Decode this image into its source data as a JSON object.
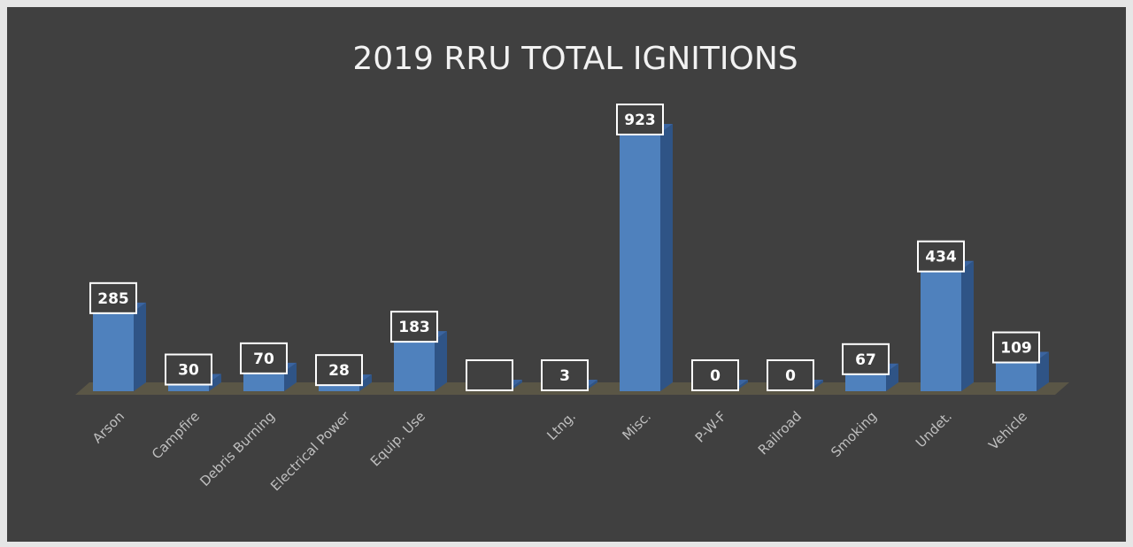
{
  "chart_data": {
    "type": "bar3d",
    "title": "2019 RRU TOTAL IGNITIONS",
    "categories": [
      "Arson",
      "Campfire",
      "Debris Burning",
      "Electrical Power",
      "Equip. Use",
      null,
      "Ltng.",
      "Misc.",
      "P-W-F",
      "Railroad",
      "Smoking",
      "Undet.",
      "Vehicle"
    ],
    "values": [
      285,
      30,
      70,
      28,
      183,
      5,
      3,
      923,
      0,
      0,
      67,
      434,
      109
    ],
    "value_labels": [
      "285",
      "30",
      "70",
      "28",
      "183",
      null,
      "3",
      "923",
      "0",
      "0",
      "67",
      "434",
      "109"
    ],
    "color": "#4f81bd"
  }
}
